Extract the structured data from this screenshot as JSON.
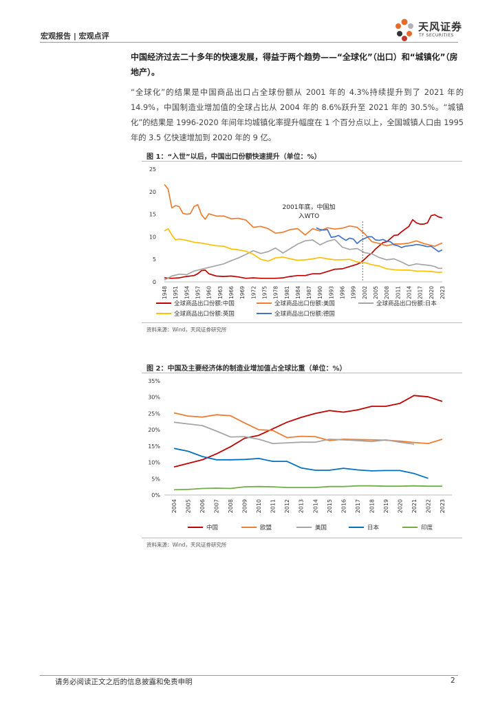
{
  "header": {
    "section": "宏观报告 | 宏观点评",
    "logo_cn": "天风证券",
    "logo_en": "TF SECURITIES"
  },
  "lead": "中国经济过去二十多年的快速发展，得益于两个趋势——“全球化”（出口）和“城镇化”（房地产）。",
  "paragraph": "“全球化”的结果是中国商品出口占全球份额从 2001 年的 4.3%持续提升到了 2021 年的 14.9%，中国制造业增加值的全球占比从 2004 年的 8.6%跃升至 2021 年的 30.5%。“城镇化”的结果是 1996-2020 年间年均城镇化率提升幅度在 1 个百分点以上，全国城镇人口由 1995 年的 3.5 亿快速增加到 2020 年的 9 亿。",
  "figure1": {
    "title": "图 1：“入世”以后，中国出口份额快速提升（单位：%）",
    "source": "资料来源：Wind，天风证券研究所"
  },
  "figure2": {
    "title": "图 2：中国及主要经济体的制造业增加值占全球比重（单位：%）",
    "source": "资料来源：Wind，天风证券研究所"
  },
  "footer": {
    "disclaimer": "请务必阅读正文之后的信息披露和免责申明",
    "page": "2"
  },
  "chart_data": [
    {
      "type": "line",
      "title": "图 1：“入世”以后，中国出口份额快速提升（单位：%）",
      "xlabel": "",
      "ylabel": "",
      "ylim": [
        0,
        25
      ],
      "yticks": [
        "0",
        "5",
        "10",
        "15",
        "20",
        "25"
      ],
      "xticks": [
        "1948",
        "1951",
        "1954",
        "1957",
        "1960",
        "1963",
        "1966",
        "1969",
        "1972",
        "1975",
        "1978",
        "1981",
        "1984",
        "1987",
        "1990",
        "1993",
        "1996",
        "1999",
        "2002",
        "2005",
        "2008",
        "2011",
        "2014",
        "2017",
        "2020",
        "2023"
      ],
      "annotation": [
        "2001年底，中国加",
        "入WTO"
      ],
      "series": [
        {
          "name": "全球商品出口份额:中国",
          "color": "#c00000",
          "x": [
            1948,
            1950,
            1952,
            1954,
            1956,
            1957,
            1958,
            1959,
            1960,
            1962,
            1964,
            1966,
            1968,
            1970,
            1972,
            1974,
            1976,
            1978,
            1980,
            1982,
            1984,
            1986,
            1988,
            1990,
            1992,
            1994,
            1996,
            1998,
            2000,
            2001,
            2002,
            2003,
            2004,
            2005,
            2006,
            2007,
            2008,
            2009,
            2010,
            2011,
            2012,
            2013,
            2014,
            2015,
            2016,
            2017,
            2018,
            2019,
            2020,
            2021,
            2022,
            2023
          ],
          "values": [
            0.9,
            0.8,
            0.9,
            1.2,
            1.4,
            1.8,
            2.5,
            2.6,
            1.8,
            1.3,
            1.2,
            1.3,
            1.1,
            0.8,
            0.9,
            0.8,
            0.8,
            0.8,
            0.9,
            1.2,
            1.4,
            1.4,
            1.8,
            1.8,
            2.3,
            2.8,
            2.9,
            3.4,
            3.9,
            4.3,
            5.0,
            5.8,
            6.4,
            7.3,
            8.0,
            8.7,
            8.9,
            9.6,
            10.3,
            10.4,
            11.1,
            11.7,
            12.3,
            13.8,
            13.1,
            12.8,
            12.8,
            13.1,
            14.7,
            14.9,
            14.4,
            14.2
          ]
        },
        {
          "name": "全球商品出口份额:美国",
          "color": "#ed7d31",
          "x": [
            1948,
            1949,
            1950,
            1951,
            1952,
            1953,
            1954,
            1955,
            1956,
            1957,
            1958,
            1959,
            1960,
            1962,
            1964,
            1966,
            1968,
            1970,
            1972,
            1974,
            1976,
            1978,
            1980,
            1982,
            1984,
            1986,
            1988,
            1990,
            1992,
            1994,
            1996,
            1998,
            2000,
            2002,
            2004,
            2006,
            2008,
            2010,
            2012,
            2014,
            2016,
            2018,
            2020,
            2021,
            2022,
            2023
          ],
          "values": [
            21.6,
            20.6,
            16.4,
            16.9,
            16.7,
            15.2,
            15.0,
            15.1,
            16.7,
            17.1,
            14.9,
            13.9,
            15.1,
            14.6,
            14.6,
            14.0,
            14.1,
            13.7,
            12.1,
            12.3,
            11.8,
            10.8,
            11.0,
            11.6,
            11.8,
            10.4,
            11.8,
            11.3,
            12.0,
            11.7,
            11.9,
            12.4,
            12.1,
            10.7,
            8.9,
            8.5,
            8.0,
            8.4,
            8.4,
            8.6,
            9.1,
            8.5,
            8.1,
            7.9,
            8.3,
            8.6
          ]
        },
        {
          "name": "全球商品出口份额:日本",
          "color": "#a5a5a5",
          "x": [
            1948,
            1950,
            1952,
            1954,
            1956,
            1958,
            1960,
            1962,
            1964,
            1966,
            1968,
            1970,
            1972,
            1974,
            1976,
            1978,
            1980,
            1982,
            1984,
            1986,
            1988,
            1990,
            1992,
            1994,
            1996,
            1998,
            2000,
            2002,
            2004,
            2006,
            2008,
            2010,
            2012,
            2014,
            2016,
            2018,
            2020,
            2021,
            2022,
            2023
          ],
          "values": [
            0.4,
            1.3,
            1.7,
            1.6,
            2.4,
            2.8,
            3.2,
            3.6,
            4.0,
            4.7,
            5.3,
            6.1,
            6.9,
            6.3,
            6.7,
            7.5,
            6.4,
            7.4,
            8.4,
            9.1,
            9.3,
            8.2,
            9.0,
            9.4,
            7.7,
            7.2,
            7.4,
            6.5,
            6.2,
            5.4,
            4.9,
            5.1,
            4.4,
            3.6,
            4.0,
            3.8,
            3.6,
            3.4,
            3.0,
            3.0
          ]
        },
        {
          "name": "全球商品出口份额:英国",
          "color": "#ffc000",
          "x": [
            1948,
            1949,
            1950,
            1951,
            1952,
            1954,
            1956,
            1958,
            1960,
            1962,
            1964,
            1966,
            1968,
            1970,
            1972,
            1974,
            1976,
            1978,
            1980,
            1982,
            1984,
            1986,
            1988,
            1990,
            1992,
            1994,
            1996,
            1998,
            2000,
            2002,
            2004,
            2006,
            2008,
            2010,
            2012,
            2014,
            2016,
            2018,
            2020,
            2021,
            2022,
            2023
          ],
          "values": [
            11.3,
            11.8,
            10.4,
            9.3,
            9.5,
            9.2,
            8.8,
            8.6,
            8.3,
            8.0,
            7.9,
            7.3,
            7.1,
            6.8,
            6.1,
            5.0,
            4.6,
            5.3,
            5.5,
            5.1,
            4.8,
            4.9,
            5.1,
            5.4,
            5.1,
            4.9,
            4.9,
            5.0,
            4.4,
            4.3,
            3.8,
            3.5,
            2.9,
            2.7,
            2.6,
            2.6,
            2.4,
            2.4,
            2.3,
            2.2,
            2.1,
            2.2
          ]
        },
        {
          "name": "全球商品出口份额:德国",
          "color": "#4472c4",
          "x": [
            1989,
            1990,
            1991,
            1992,
            1993,
            1994,
            1995,
            1996,
            1997,
            1998,
            1999,
            2000,
            2001,
            2002,
            2003,
            2004,
            2005,
            2006,
            2007,
            2008,
            2009,
            2010,
            2011,
            2012,
            2013,
            2014,
            2015,
            2016,
            2017,
            2018,
            2019,
            2020,
            2021,
            2022,
            2023
          ],
          "values": [
            12.0,
            11.6,
            11.5,
            11.6,
            9.9,
            10.0,
            10.3,
            9.7,
            9.2,
            9.7,
            9.5,
            8.5,
            9.2,
            9.6,
            10.0,
            10.0,
            9.3,
            9.2,
            9.4,
            9.0,
            8.9,
            8.2,
            8.0,
            7.6,
            7.9,
            8.0,
            8.1,
            8.3,
            8.2,
            8.0,
            7.8,
            7.9,
            7.3,
            6.7,
            7.1
          ]
        }
      ]
    },
    {
      "type": "line",
      "title": "图 2：中国及主要经济体的制造业增加值占全球比重（单位：%）",
      "xlabel": "",
      "ylabel": "",
      "ylim": [
        0,
        35
      ],
      "yticks": [
        "0%",
        "5%",
        "10%",
        "15%",
        "20%",
        "25%",
        "30%",
        "35%"
      ],
      "categories": [
        "2004",
        "2005",
        "2006",
        "2007",
        "2008",
        "2009",
        "2010",
        "2011",
        "2012",
        "2013",
        "2014",
        "2015",
        "2016",
        "2017",
        "2018",
        "2019",
        "2020",
        "2021",
        "2022",
        "2023"
      ],
      "series": [
        {
          "name": "中国",
          "color": "#c00000",
          "values": [
            8.6,
            9.7,
            10.8,
            12.6,
            14.8,
            17.4,
            18.3,
            20.3,
            22.3,
            23.8,
            25.0,
            25.9,
            25.4,
            26.1,
            27.2,
            27.2,
            28.1,
            30.5,
            30.1,
            28.7
          ]
        },
        {
          "name": "欧盟",
          "color": "#ed7d31",
          "values": [
            25.2,
            24.2,
            23.9,
            24.6,
            24.3,
            22.1,
            20.0,
            19.8,
            17.6,
            18.0,
            17.9,
            16.7,
            17.1,
            17.0,
            16.9,
            16.8,
            16.5,
            16.1,
            15.8,
            17.1
          ]
        },
        {
          "name": "美国",
          "color": "#a5a5a5",
          "values": [
            22.3,
            21.8,
            21.3,
            19.6,
            17.8,
            17.9,
            17.1,
            15.8,
            16.0,
            16.2,
            16.2,
            17.1,
            16.9,
            16.7,
            16.4,
            16.9,
            16.2,
            15.6,
            null,
            null
          ]
        },
        {
          "name": "日本",
          "color": "#0070c0",
          "values": [
            14.3,
            13.4,
            11.8,
            10.8,
            10.8,
            10.9,
            11.2,
            10.3,
            10.3,
            8.3,
            7.6,
            7.6,
            8.2,
            7.7,
            7.4,
            7.5,
            7.5,
            6.6,
            5.1,
            null
          ]
        },
        {
          "name": "印度",
          "color": "#70ad47",
          "values": [
            1.6,
            1.7,
            2.0,
            2.1,
            2.0,
            2.5,
            2.6,
            2.5,
            2.3,
            2.3,
            2.3,
            2.6,
            2.6,
            2.8,
            2.8,
            2.7,
            2.7,
            2.8,
            2.7,
            2.7
          ]
        }
      ]
    }
  ]
}
